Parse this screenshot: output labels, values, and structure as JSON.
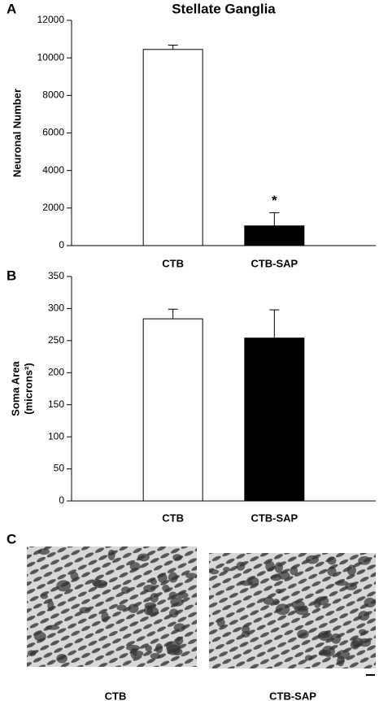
{
  "chart_data": [
    {
      "type": "bar",
      "panel_label": "A",
      "title": "Stellate Ganglia",
      "ylabel": "Neuronal Number",
      "categories": [
        "CTB",
        "CTB-SAP"
      ],
      "values": [
        10450,
        1050
      ],
      "errors": [
        230,
        700
      ],
      "colors": [
        "#ffffff",
        "#000000"
      ],
      "annotations": [
        null,
        "*"
      ],
      "ylim": [
        0,
        12000
      ],
      "yticks": [
        0,
        2000,
        4000,
        6000,
        8000,
        10000,
        12000
      ]
    },
    {
      "type": "bar",
      "panel_label": "B",
      "ylabel": "Soma Area",
      "ylabel_line2": "(microns²)",
      "categories": [
        "CTB",
        "CTB-SAP"
      ],
      "values": [
        284,
        254
      ],
      "errors": [
        15,
        44
      ],
      "colors": [
        "#ffffff",
        "#000000"
      ],
      "ylim": [
        0,
        350
      ],
      "yticks": [
        0,
        50,
        100,
        150,
        200,
        250,
        300,
        350
      ]
    }
  ],
  "panel_c": {
    "label": "C",
    "captions": [
      "CTB",
      "CTB-SAP"
    ]
  }
}
